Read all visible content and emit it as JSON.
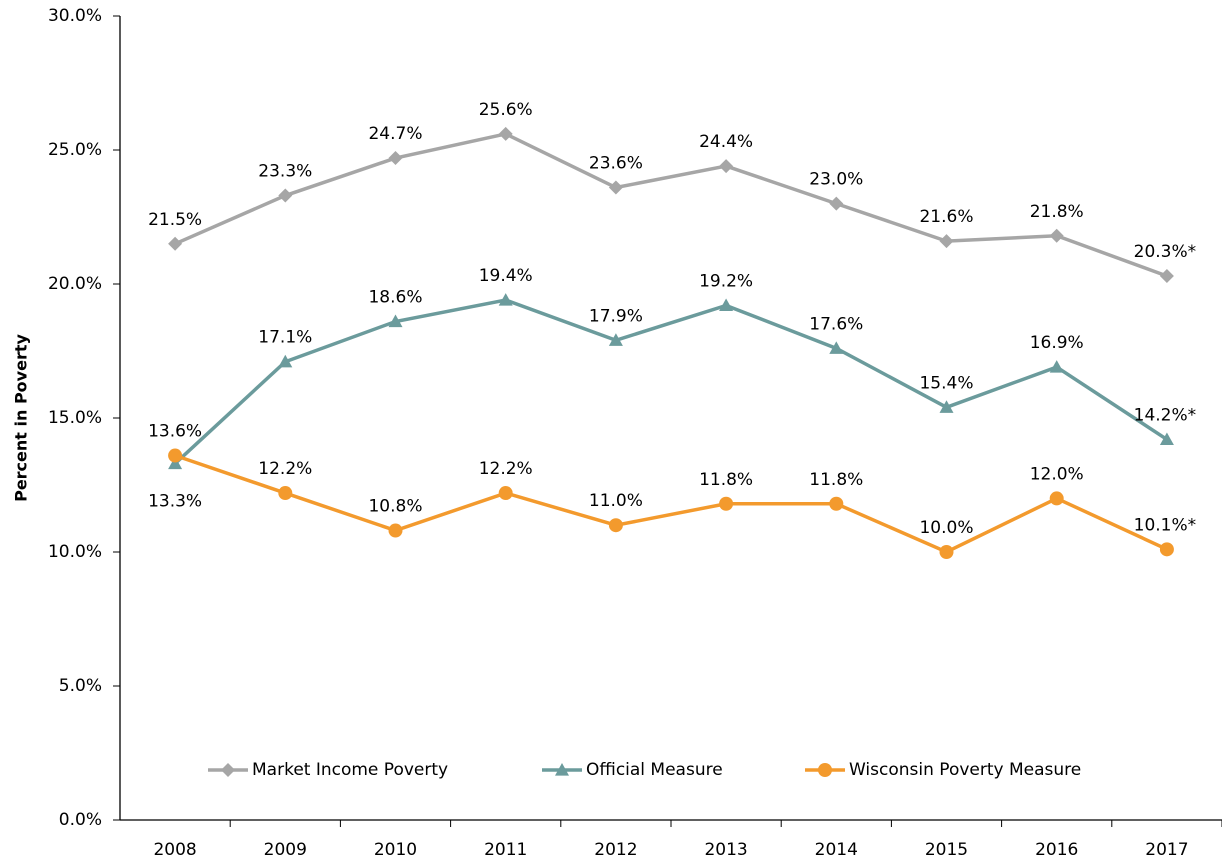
{
  "chart_data": {
    "type": "line",
    "y_label": "Percent in Poverty",
    "categories": [
      "2008",
      "2009",
      "2010",
      "2011",
      "2012",
      "2013",
      "2014",
      "2015",
      "2016",
      "2017"
    ],
    "series": [
      {
        "name": "Market Income Poverty",
        "color": "#a6a6a6",
        "marker": "diamond",
        "values": [
          21.5,
          23.3,
          24.7,
          25.6,
          23.6,
          24.4,
          23.0,
          21.6,
          21.8,
          20.3
        ],
        "value_labels": [
          "21.5%",
          "23.3%",
          "24.7%",
          "25.6%",
          "23.6%",
          "24.4%",
          "23.0%",
          "21.6%",
          "21.8%",
          "20.3%*"
        ]
      },
      {
        "name": "Official Measure",
        "color": "#6b9b9c",
        "marker": "triangle",
        "values": [
          13.3,
          17.1,
          18.6,
          19.4,
          17.9,
          19.2,
          17.6,
          15.4,
          16.9,
          14.2
        ],
        "value_labels": [
          "13.3%",
          "17.1%",
          "18.6%",
          "19.4%",
          "17.9%",
          "19.2%",
          "17.6%",
          "15.4%",
          "16.9%",
          "14.2%*"
        ]
      },
      {
        "name": "Wisconsin Poverty Measure",
        "color": "#f39a2d",
        "marker": "circle",
        "values": [
          13.6,
          12.2,
          10.8,
          12.2,
          11.0,
          11.8,
          11.8,
          10.0,
          12.0,
          10.1
        ],
        "value_labels": [
          "13.6%",
          "12.2%",
          "10.8%",
          "12.2%",
          "11.0%",
          "11.8%",
          "11.8%",
          "10.0%",
          "12.0%",
          "10.1%*"
        ]
      }
    ],
    "ylim": [
      0,
      30
    ],
    "yticks": [
      {
        "value": 0,
        "label": "0.0%"
      },
      {
        "value": 5,
        "label": "5.0%"
      },
      {
        "value": 10,
        "label": "10.0%"
      },
      {
        "value": 15,
        "label": "15.0%"
      },
      {
        "value": 20,
        "label": "20.0%"
      },
      {
        "value": 25,
        "label": "25.0%"
      },
      {
        "value": 30,
        "label": "30.0%"
      }
    ],
    "grid": false,
    "legend": "bottom"
  }
}
